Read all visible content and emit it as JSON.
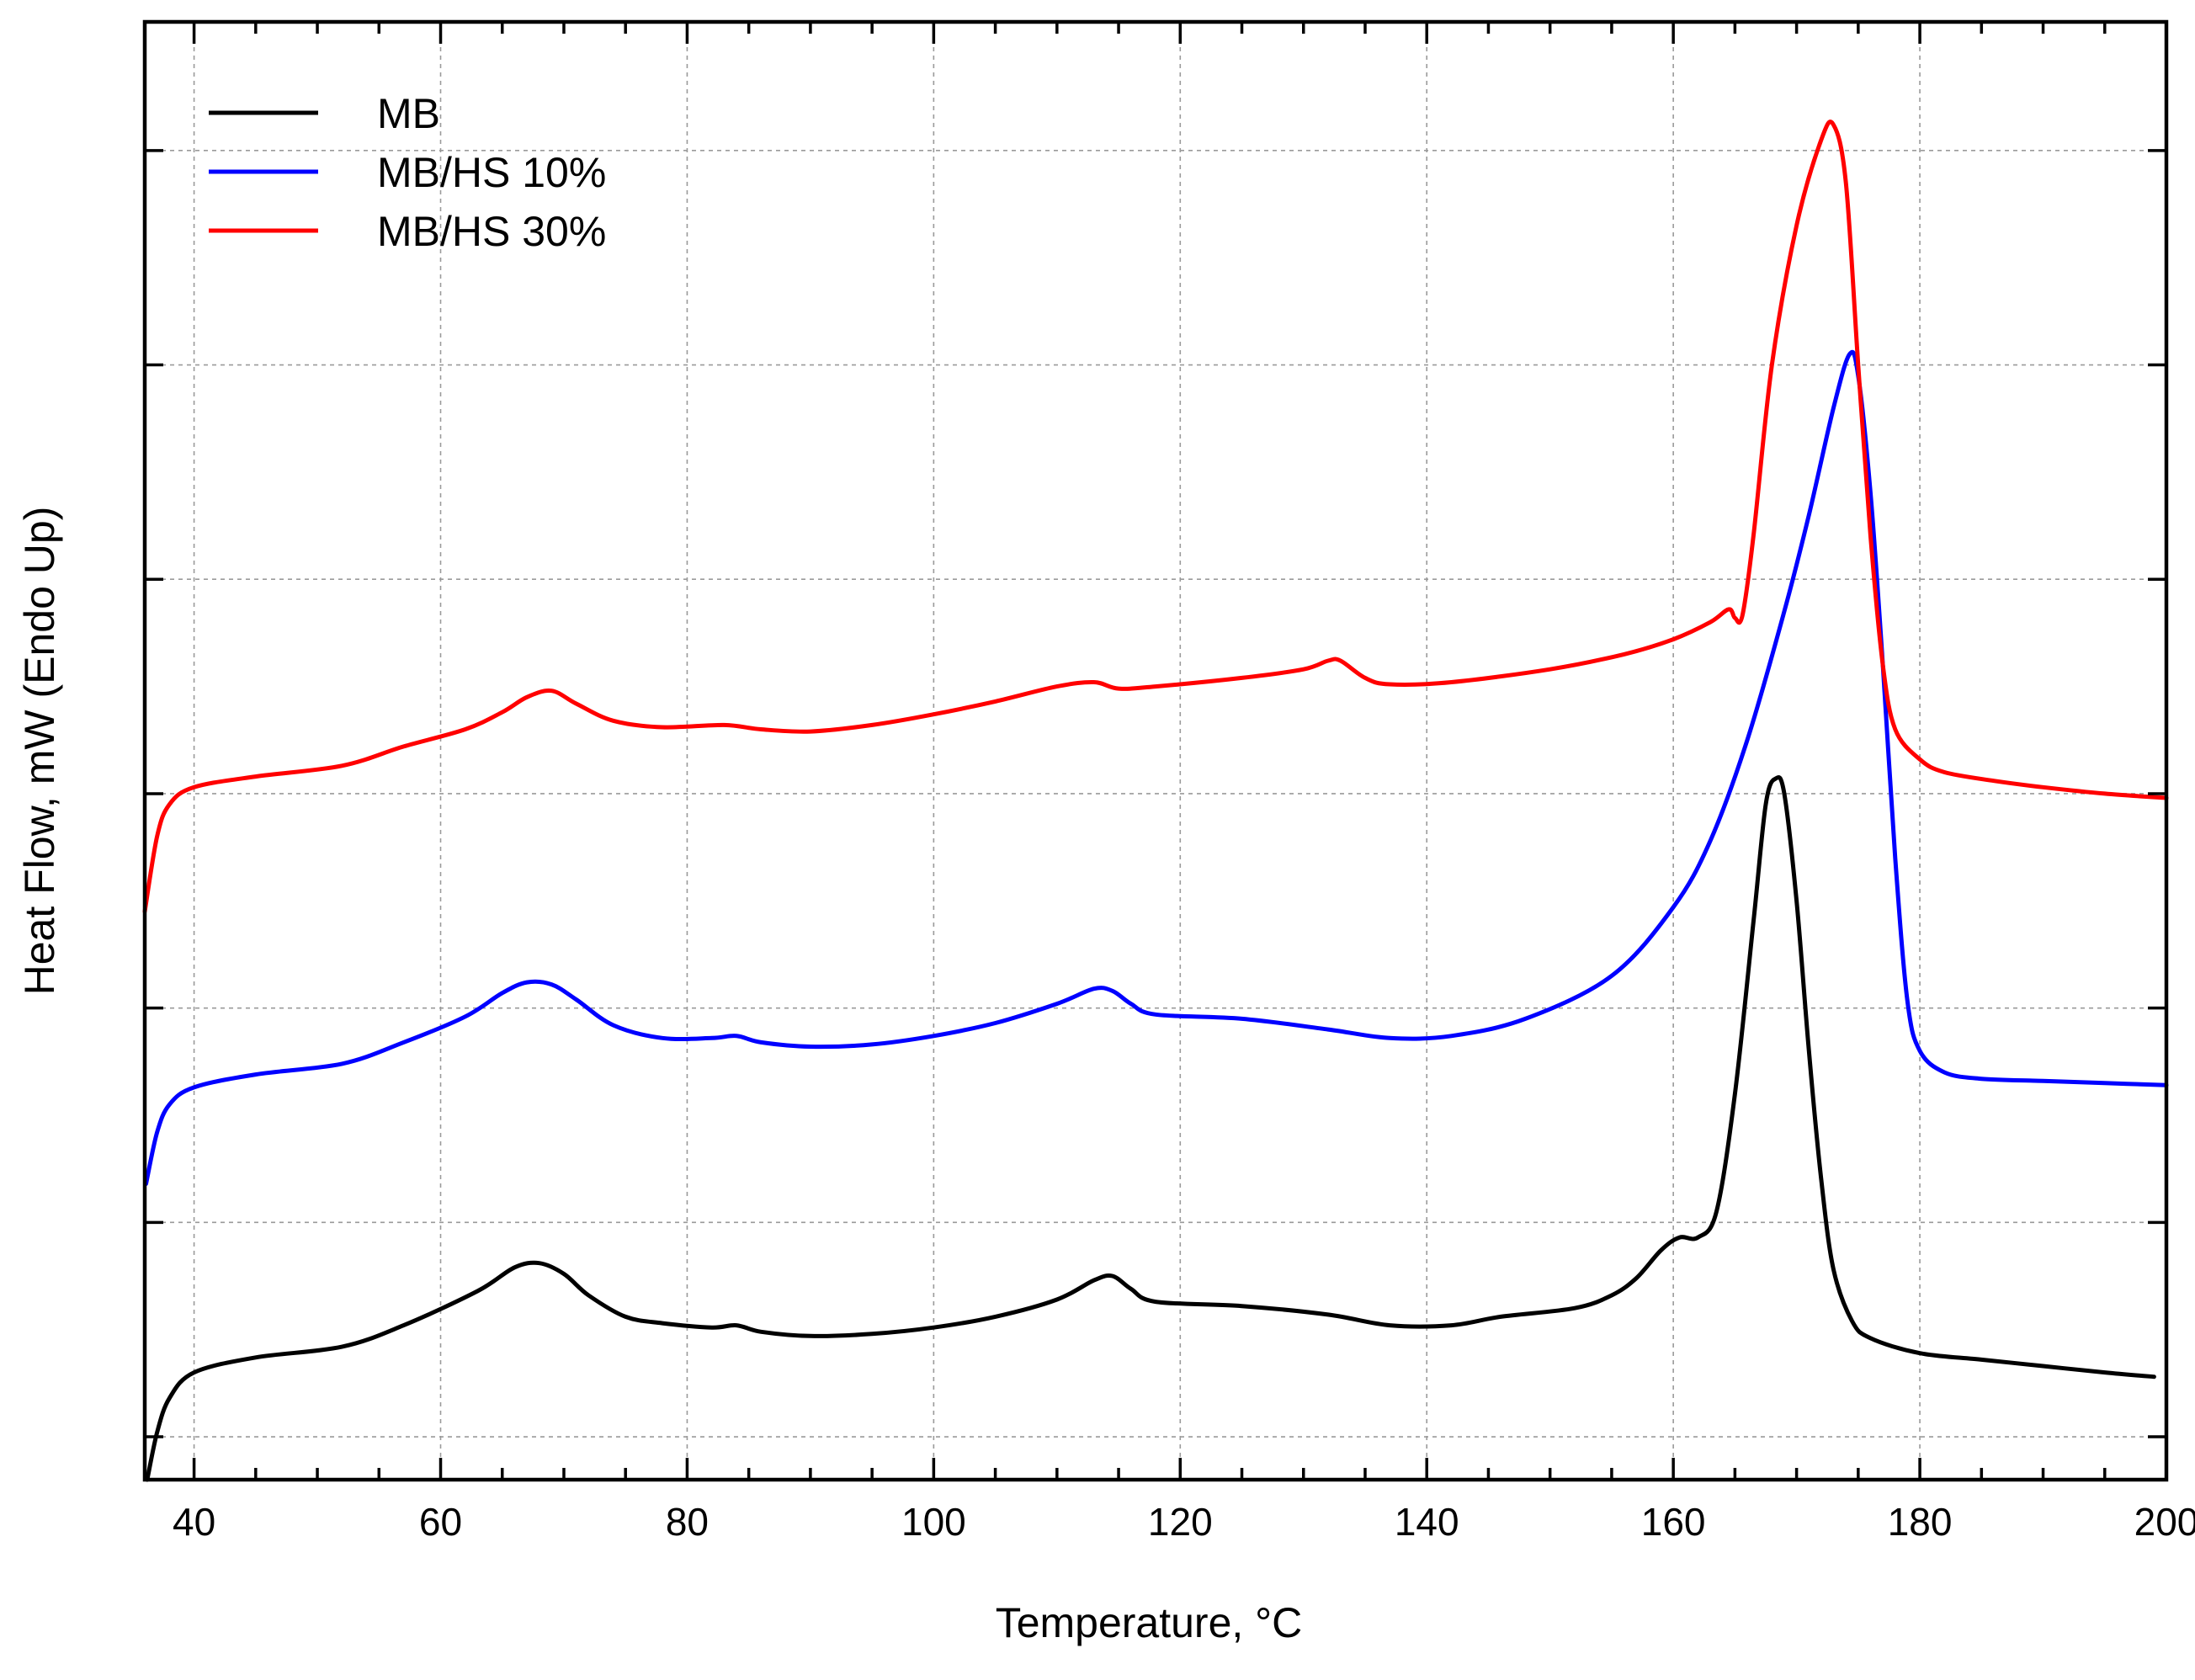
{
  "chart_data": {
    "type": "line",
    "title": "",
    "xlabel": "Temperature, °C",
    "ylabel": "Heat Flow, mW (Endo Up)",
    "xlim": [
      36,
      200
    ],
    "ylim": [
      0,
      68
    ],
    "xticks": [
      40,
      60,
      80,
      100,
      120,
      140,
      160,
      180,
      200
    ],
    "xtick_labels": [
      "40",
      "60",
      "80",
      "100",
      "120",
      "140",
      "160",
      "180",
      "200"
    ],
    "x_minor_step": 5,
    "yticks": [
      2,
      12,
      22,
      32,
      42,
      52,
      62
    ],
    "ytick_labels": [],
    "grid": true,
    "legend_position": "top-left",
    "series": [
      {
        "name": "MB",
        "color": "#000000",
        "points": [
          [
            36.2,
            0
          ],
          [
            37,
            2.2
          ],
          [
            38,
            3.8
          ],
          [
            40,
            5
          ],
          [
            45,
            5.7
          ],
          [
            52,
            6.2
          ],
          [
            57,
            7.2
          ],
          [
            63,
            8.8
          ],
          [
            66,
            9.9
          ],
          [
            68,
            10.1
          ],
          [
            70,
            9.6
          ],
          [
            72,
            8.6
          ],
          [
            75,
            7.6
          ],
          [
            78,
            7.3
          ],
          [
            82,
            7.1
          ],
          [
            84,
            7.2
          ],
          [
            86,
            6.9
          ],
          [
            90,
            6.7
          ],
          [
            95,
            6.8
          ],
          [
            100,
            7.1
          ],
          [
            105,
            7.6
          ],
          [
            110,
            8.4
          ],
          [
            113,
            9.3
          ],
          [
            114.5,
            9.5
          ],
          [
            116,
            8.9
          ],
          [
            118,
            8.3
          ],
          [
            125,
            8.1
          ],
          [
            132,
            7.7
          ],
          [
            137,
            7.2
          ],
          [
            142,
            7.2
          ],
          [
            146,
            7.6
          ],
          [
            152,
            8
          ],
          [
            155,
            8.6
          ],
          [
            157,
            9.4
          ],
          [
            159,
            10.7
          ],
          [
            160.5,
            11.3
          ],
          [
            162,
            11.3
          ],
          [
            163.5,
            12.5
          ],
          [
            165,
            18
          ],
          [
            166.5,
            26
          ],
          [
            167.5,
            31.5
          ],
          [
            168.3,
            32.7
          ],
          [
            169,
            32
          ],
          [
            170,
            27
          ],
          [
            171,
            20
          ],
          [
            172,
            14
          ],
          [
            173,
            9.8
          ],
          [
            174.5,
            7.4
          ],
          [
            176,
            6.6
          ],
          [
            180,
            5.9
          ],
          [
            185,
            5.6
          ],
          [
            190,
            5.3
          ],
          [
            195,
            5
          ],
          [
            199,
            4.8
          ]
        ]
      },
      {
        "name": "MB/HS 10%",
        "color": "#0000ff",
        "points": [
          [
            36.1,
            13.8
          ],
          [
            37,
            16.2
          ],
          [
            38,
            17.5
          ],
          [
            40,
            18.3
          ],
          [
            45,
            18.9
          ],
          [
            52,
            19.4
          ],
          [
            57,
            20.4
          ],
          [
            62,
            21.6
          ],
          [
            65,
            22.7
          ],
          [
            67,
            23.2
          ],
          [
            69,
            23.1
          ],
          [
            71,
            22.4
          ],
          [
            74,
            21.2
          ],
          [
            78,
            20.6
          ],
          [
            82,
            20.6
          ],
          [
            84,
            20.7
          ],
          [
            86,
            20.4
          ],
          [
            90,
            20.2
          ],
          [
            95,
            20.3
          ],
          [
            100,
            20.7
          ],
          [
            105,
            21.3
          ],
          [
            110,
            22.2
          ],
          [
            113,
            22.9
          ],
          [
            114.5,
            22.8
          ],
          [
            116,
            22.2
          ],
          [
            118,
            21.7
          ],
          [
            125,
            21.5
          ],
          [
            132,
            21
          ],
          [
            137,
            20.6
          ],
          [
            142,
            20.7
          ],
          [
            148,
            21.5
          ],
          [
            155,
            23.5
          ],
          [
            160,
            26.7
          ],
          [
            163,
            29.8
          ],
          [
            166,
            34.5
          ],
          [
            169,
            40.5
          ],
          [
            171,
            45
          ],
          [
            173,
            50
          ],
          [
            174.3,
            52.5
          ],
          [
            175,
            51.5
          ],
          [
            176,
            46
          ],
          [
            177,
            38
          ],
          [
            178,
            29
          ],
          [
            179,
            22.3
          ],
          [
            180,
            20
          ],
          [
            182,
            19
          ],
          [
            185,
            18.7
          ],
          [
            190,
            18.6
          ],
          [
            195,
            18.5
          ],
          [
            200,
            18.4
          ]
        ]
      },
      {
        "name": "MB/HS 30%",
        "color": "#ff0000",
        "points": [
          [
            36,
            26.5
          ],
          [
            37,
            30
          ],
          [
            38,
            31.5
          ],
          [
            40,
            32.3
          ],
          [
            45,
            32.8
          ],
          [
            52,
            33.3
          ],
          [
            57,
            34.2
          ],
          [
            62,
            35
          ],
          [
            65,
            35.8
          ],
          [
            67,
            36.5
          ],
          [
            69,
            36.8
          ],
          [
            71,
            36.2
          ],
          [
            74,
            35.4
          ],
          [
            78,
            35.1
          ],
          [
            83,
            35.2
          ],
          [
            86,
            35
          ],
          [
            90,
            34.9
          ],
          [
            95,
            35.2
          ],
          [
            100,
            35.7
          ],
          [
            105,
            36.3
          ],
          [
            110,
            37
          ],
          [
            113,
            37.2
          ],
          [
            115,
            36.9
          ],
          [
            118,
            37
          ],
          [
            125,
            37.4
          ],
          [
            130,
            37.8
          ],
          [
            132,
            38.2
          ],
          [
            133,
            38.2
          ],
          [
            135,
            37.4
          ],
          [
            137,
            37.1
          ],
          [
            142,
            37.2
          ],
          [
            150,
            37.8
          ],
          [
            156,
            38.5
          ],
          [
            160,
            39.2
          ],
          [
            163,
            40
          ],
          [
            164.5,
            40.6
          ],
          [
            165,
            40.2
          ],
          [
            165.6,
            40.3
          ],
          [
            166.5,
            44
          ],
          [
            168,
            52
          ],
          [
            170,
            58.5
          ],
          [
            172,
            62.5
          ],
          [
            173,
            63.2
          ],
          [
            174,
            60.5
          ],
          [
            175,
            52
          ],
          [
            176,
            44
          ],
          [
            177,
            38
          ],
          [
            178,
            35
          ],
          [
            180,
            33.6
          ],
          [
            182,
            33
          ],
          [
            186,
            32.6
          ],
          [
            190,
            32.3
          ],
          [
            195,
            32
          ],
          [
            200,
            31.8
          ]
        ]
      }
    ]
  }
}
